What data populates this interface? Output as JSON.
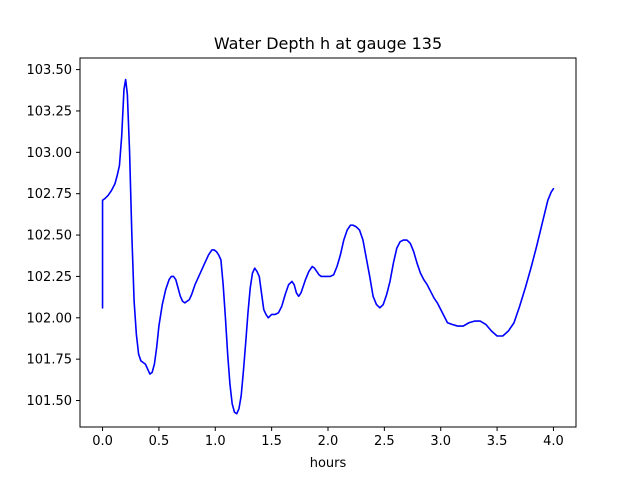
{
  "chart_data": {
    "type": "line",
    "title": "Water Depth h at gauge 135",
    "xlabel": "hours",
    "ylabel": "",
    "xlim": [
      -0.2,
      4.2
    ],
    "ylim": [
      101.34,
      103.57
    ],
    "xticks": [
      0.0,
      0.5,
      1.0,
      1.5,
      2.0,
      2.5,
      3.0,
      3.5,
      4.0
    ],
    "xtick_labels": [
      "0.0",
      "0.5",
      "1.0",
      "1.5",
      "2.0",
      "2.5",
      "3.0",
      "3.5",
      "4.0"
    ],
    "yticks": [
      101.5,
      101.75,
      102.0,
      102.25,
      102.5,
      102.75,
      103.0,
      103.25,
      103.5
    ],
    "ytick_labels": [
      "101.50",
      "101.75",
      "102.00",
      "102.25",
      "102.50",
      "102.75",
      "103.00",
      "103.25",
      "103.50"
    ],
    "grid": false,
    "series": [
      {
        "color": "#0000ff",
        "x": [
          0.0,
          0.0,
          0.0,
          0.02,
          0.05,
          0.08,
          0.11,
          0.13,
          0.15,
          0.17,
          0.19,
          0.205,
          0.22,
          0.24,
          0.26,
          0.28,
          0.3,
          0.32,
          0.34,
          0.36,
          0.38,
          0.4,
          0.42,
          0.44,
          0.46,
          0.48,
          0.5,
          0.53,
          0.56,
          0.59,
          0.61,
          0.63,
          0.65,
          0.67,
          0.69,
          0.71,
          0.73,
          0.75,
          0.77,
          0.79,
          0.82,
          0.86,
          0.9,
          0.94,
          0.97,
          0.99,
          1.01,
          1.03,
          1.05,
          1.07,
          1.09,
          1.11,
          1.13,
          1.15,
          1.17,
          1.19,
          1.21,
          1.23,
          1.25,
          1.27,
          1.29,
          1.31,
          1.33,
          1.35,
          1.37,
          1.39,
          1.41,
          1.43,
          1.45,
          1.47,
          1.5,
          1.53,
          1.56,
          1.59,
          1.62,
          1.65,
          1.68,
          1.7,
          1.72,
          1.74,
          1.76,
          1.78,
          1.8,
          1.83,
          1.86,
          1.88,
          1.9,
          1.92,
          1.94,
          1.96,
          1.99,
          2.02,
          2.05,
          2.08,
          2.11,
          2.14,
          2.17,
          2.2,
          2.22,
          2.25,
          2.28,
          2.31,
          2.34,
          2.37,
          2.4,
          2.43,
          2.46,
          2.49,
          2.52,
          2.55,
          2.58,
          2.61,
          2.64,
          2.67,
          2.7,
          2.73,
          2.76,
          2.79,
          2.82,
          2.85,
          2.88,
          2.91,
          2.94,
          2.97,
          3.0,
          3.03,
          3.06,
          3.1,
          3.15,
          3.2,
          3.25,
          3.3,
          3.35,
          3.4,
          3.45,
          3.5,
          3.55,
          3.6,
          3.65,
          3.7,
          3.75,
          3.8,
          3.85,
          3.9,
          3.95,
          3.98,
          4.0
        ],
        "y": [
          102.06,
          102.7,
          102.71,
          102.72,
          102.74,
          102.77,
          102.81,
          102.86,
          102.92,
          103.1,
          103.38,
          103.44,
          103.35,
          103.0,
          102.5,
          102.1,
          101.9,
          101.78,
          101.74,
          101.73,
          101.72,
          101.69,
          101.66,
          101.67,
          101.72,
          101.82,
          101.95,
          102.08,
          102.17,
          102.23,
          102.25,
          102.25,
          102.23,
          102.18,
          102.13,
          102.1,
          102.09,
          102.1,
          102.11,
          102.14,
          102.2,
          102.26,
          102.32,
          102.38,
          102.41,
          102.41,
          102.4,
          102.38,
          102.35,
          102.2,
          102.0,
          101.78,
          101.6,
          101.48,
          101.43,
          101.42,
          101.45,
          101.53,
          101.68,
          101.85,
          102.03,
          102.18,
          102.27,
          102.3,
          102.28,
          102.25,
          102.15,
          102.05,
          102.02,
          102.0,
          102.02,
          102.02,
          102.03,
          102.07,
          102.14,
          102.2,
          102.22,
          102.2,
          102.15,
          102.13,
          102.15,
          102.19,
          102.23,
          102.28,
          102.31,
          102.3,
          102.28,
          102.26,
          102.25,
          102.25,
          102.25,
          102.25,
          102.26,
          102.31,
          102.38,
          102.47,
          102.53,
          102.56,
          102.56,
          102.55,
          102.53,
          102.47,
          102.36,
          102.25,
          102.13,
          102.08,
          102.06,
          102.08,
          102.14,
          102.22,
          102.33,
          102.42,
          102.46,
          102.47,
          102.47,
          102.45,
          102.4,
          102.33,
          102.27,
          102.23,
          102.2,
          102.16,
          102.12,
          102.09,
          102.05,
          102.01,
          101.97,
          101.96,
          101.95,
          101.95,
          101.97,
          101.98,
          101.98,
          101.96,
          101.92,
          101.89,
          101.89,
          101.92,
          101.97,
          102.07,
          102.18,
          102.3,
          102.43,
          102.57,
          102.71,
          102.76,
          102.78
        ]
      }
    ]
  }
}
